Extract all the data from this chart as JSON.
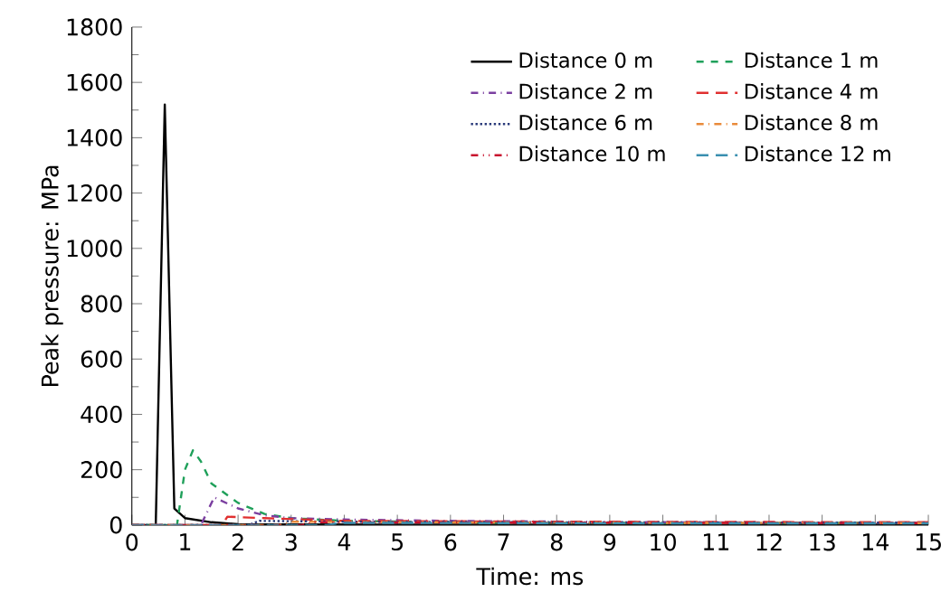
{
  "chart_data": {
    "type": "line",
    "xlabel": "Time: ms",
    "ylabel": "Peak pressure: MPa",
    "xlim": [
      0,
      15
    ],
    "ylim": [
      0,
      1800
    ],
    "xticks": [
      0,
      1,
      2,
      3,
      4,
      5,
      6,
      7,
      8,
      9,
      10,
      11,
      12,
      13,
      14,
      15
    ],
    "yticks": [
      0,
      200,
      400,
      600,
      800,
      1000,
      1200,
      1400,
      1600,
      1800
    ],
    "legend": "top right",
    "grid": false,
    "series": [
      {
        "name": "Distance 0 m",
        "color": "#000000",
        "line_style": "solid",
        "x": [
          0,
          0.45,
          0.62,
          0.8,
          1.0,
          1.5,
          2,
          3,
          5,
          8,
          11,
          15
        ],
        "values": [
          0,
          0,
          1520,
          60,
          25,
          10,
          3,
          2,
          1,
          1,
          1,
          1
        ]
      },
      {
        "name": "Distance 1 m",
        "color": "#1fa05a",
        "line_style": "dashed",
        "x": [
          0,
          0.85,
          1.0,
          1.15,
          1.3,
          1.5,
          2,
          2.5,
          3,
          4,
          6,
          10,
          15
        ],
        "values": [
          0,
          0,
          200,
          270,
          230,
          150,
          80,
          40,
          25,
          15,
          10,
          8,
          8
        ]
      },
      {
        "name": "Distance 2 m",
        "color": "#7b3fa0",
        "line_style": "dashdot",
        "x": [
          0,
          1.3,
          1.55,
          2,
          2.5,
          3,
          4,
          6,
          10,
          15
        ],
        "values": [
          0,
          0,
          100,
          60,
          35,
          25,
          20,
          15,
          10,
          8
        ]
      },
      {
        "name": "Distance 4 m",
        "color": "#e03030",
        "line_style": "loosely dashed",
        "x": [
          0,
          1.7,
          1.8,
          2.5,
          4,
          8,
          15
        ],
        "values": [
          0,
          0,
          30,
          25,
          15,
          12,
          10
        ]
      },
      {
        "name": "Distance 6 m",
        "color": "#2a3a7a",
        "line_style": "dotted",
        "x": [
          0,
          2.2,
          2.4,
          4,
          8,
          15
        ],
        "values": [
          0,
          0,
          15,
          12,
          10,
          8
        ]
      },
      {
        "name": "Distance 8 m",
        "color": "#e98a3a",
        "line_style": "dashdot",
        "x": [
          0,
          2.8,
          3.0,
          5,
          10,
          15
        ],
        "values": [
          0,
          0,
          12,
          10,
          8,
          7
        ]
      },
      {
        "name": "Distance 10 m",
        "color": "#c8102e",
        "line_style": "dashdotdot",
        "x": [
          0,
          3.2,
          3.4,
          6,
          10,
          15
        ],
        "values": [
          0,
          0,
          10,
          9,
          8,
          7
        ]
      },
      {
        "name": "Distance 12 m",
        "color": "#3a8fb0",
        "line_style": "loosely dashed",
        "x": [
          0,
          3.7,
          3.9,
          7,
          11,
          15
        ],
        "values": [
          0,
          0,
          8,
          7,
          6,
          6
        ]
      }
    ]
  }
}
